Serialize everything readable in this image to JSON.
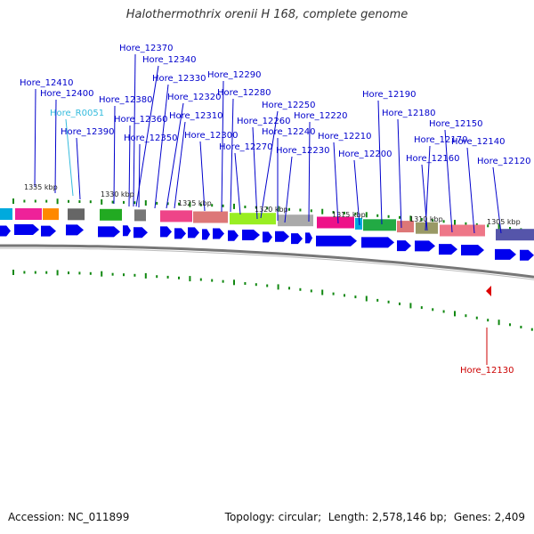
{
  "title": "Halothermothrix orenii H 168, complete genome",
  "footer": {
    "accession_label": "Accession:",
    "accession": "NC_011899",
    "topology_label": "Topology:",
    "topology": "circular",
    "length_label": "Length:",
    "length": "2,578,146 bp",
    "genes_label": "Genes:",
    "genes": "2,409"
  },
  "scale_ticks": [
    "1335 kbp",
    "1330 kbp",
    "1325 kbp",
    "1320 kbp",
    "1315 kbp",
    "1310 kbp",
    "1305 kbp"
  ],
  "gene_labels": [
    {
      "text": "Hore_12370",
      "color": "#0000cc"
    },
    {
      "text": "Hore_12340",
      "color": "#0000cc"
    },
    {
      "text": "Hore_12330",
      "color": "#0000cc"
    },
    {
      "text": "Hore_12290",
      "color": "#0000cc"
    },
    {
      "text": "Hore_12410",
      "color": "#0000cc"
    },
    {
      "text": "Hore_12400",
      "color": "#0000cc"
    },
    {
      "text": "Hore_12380",
      "color": "#0000cc"
    },
    {
      "text": "Hore_12320",
      "color": "#0000cc"
    },
    {
      "text": "Hore_12280",
      "color": "#0000cc"
    },
    {
      "text": "Hore_12190",
      "color": "#0000cc"
    },
    {
      "text": "Hore_R0051",
      "color": "#33bbdd"
    },
    {
      "text": "Hore_12360",
      "color": "#0000cc"
    },
    {
      "text": "Hore_12310",
      "color": "#0000cc"
    },
    {
      "text": "Hore_12250",
      "color": "#0000cc"
    },
    {
      "text": "Hore_12220",
      "color": "#0000cc"
    },
    {
      "text": "Hore_12180",
      "color": "#0000cc"
    },
    {
      "text": "Hore_12390",
      "color": "#0000cc"
    },
    {
      "text": "Hore_12350",
      "color": "#0000cc"
    },
    {
      "text": "Hore_12300",
      "color": "#0000cc"
    },
    {
      "text": "Hore_12260",
      "color": "#0000cc"
    },
    {
      "text": "Hore_12240",
      "color": "#0000cc"
    },
    {
      "text": "Hore_12210",
      "color": "#0000cc"
    },
    {
      "text": "Hore_12170",
      "color": "#0000cc"
    },
    {
      "text": "Hore_12150",
      "color": "#0000cc"
    },
    {
      "text": "Hore_12270",
      "color": "#0000cc"
    },
    {
      "text": "Hore_12230",
      "color": "#0000cc"
    },
    {
      "text": "Hore_12200",
      "color": "#0000cc"
    },
    {
      "text": "Hore_12160",
      "color": "#0000cc"
    },
    {
      "text": "Hore_12140",
      "color": "#0000cc"
    },
    {
      "text": "Hore_12120",
      "color": "#0000cc"
    },
    {
      "text": "Hore_12130",
      "color": "#cc0000"
    }
  ],
  "colors": {
    "cds": "#0000ee",
    "backbone": "#888888",
    "tick": "#118811",
    "gene_label": "#0000cc",
    "rna_label": "#33bbdd",
    "minus_label": "#cc0000",
    "cog_colors": [
      "#00aadd",
      "#ee2299",
      "#ff8800",
      "#666666",
      "#22aa22",
      "#777777",
      "#ee4488",
      "#dd7777",
      "#99ee22",
      "#aaaaaa",
      "#ee1188",
      "#22aa44",
      "#bb9988",
      "#999966",
      "#ee7788",
      "#5555aa"
    ]
  }
}
